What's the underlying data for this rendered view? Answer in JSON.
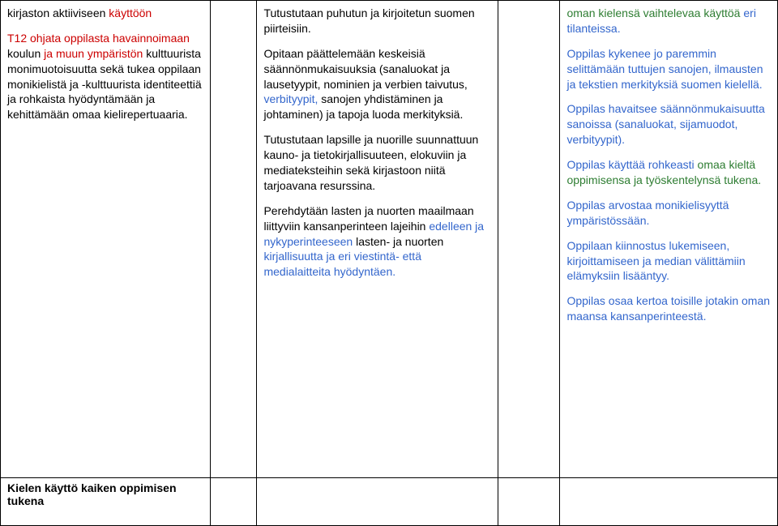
{
  "colors": {
    "red": "#cc0000",
    "blue": "#3366cc",
    "green": "#2e7d32",
    "black": "#000000",
    "border": "#000000",
    "background": "#ffffff"
  },
  "typography": {
    "font_family": "Arial",
    "font_size_pt": 11,
    "line_height": 1.35
  },
  "layout": {
    "columns": 5,
    "column_widths_pct": [
      27,
      6,
      31,
      8,
      28
    ]
  },
  "col1": {
    "p1_part1": "kirjaston aktiiviseen ",
    "p1_part2_red": "käyttöön",
    "p2_part1_red": "T12 ohjata oppilasta havainnoimaan",
    "p2_part2": " koulun ",
    "p2_part3_red": "ja muun ympäristön",
    "p2_part4": " kulttuurista monimuotoisuutta sekä tukea oppilaan monikielistä ja -kulttuurista identiteettiä ja rohkaista hyödyntämään ja kehittämään omaa kielirepertuaaria."
  },
  "col3": {
    "p1": "Tutustutaan puhutun ja kirjoitetun suomen piirteisiin.",
    "p2_part1": "Opitaan päättelemään keskeisiä säännönmukaisuuksia (sanaluokat ja lausetyypit, nominien ja verbien taivutus, ",
    "p2_part2_blue": "verbityypit,",
    "p2_part3": " sanojen yhdistäminen ja johtaminen) ja tapoja luoda merkityksiä.",
    "p3": "Tutustutaan lapsille ja nuorille suunnattuun kauno- ja tietokirjallisuuteen, elokuviin ja mediateksteihin sekä kirjastoon niitä tarjoavana resurssina.",
    "p4_part1": "Perehdytään lasten ja nuorten maailmaan liittyviin kansanperinteen lajeihin ",
    "p4_part2_blue": "edelleen ja nykyperinteeseen",
    "p4_part3": " lasten- ja nuorten ",
    "p4_part4_blue": "kirjallisuutta ja eri viestintä- että medialaitteita hyödyntäen."
  },
  "col5": {
    "p1_part1_green": "oman kielensä vaihtelevaa käyttöä",
    "p1_part2_blue": " eri tilanteissa.",
    "p2": "Oppilas kykenee jo paremmin selittämään tuttujen sanojen, ilmausten ja tekstien merkityksiä suomen kielellä.",
    "p3": "Oppilas havaitsee säännönmukaisuutta sanoissa (sanaluokat, sijamuodot, verbityypit).",
    "p4_part1_blue": "Oppilas käyttää rohkeasti ",
    "p4_part2_green": "omaa kieltä oppimisensa ja työskentelynsä tukena.",
    "p5": "Oppilas arvostaa monikielisyyttä ympäristössään.",
    "p6": "Oppilaan kiinnostus lukemiseen, kirjoittamiseen ja median välittämiin elämyksiin lisääntyy.",
    "p7": "Oppilas osaa kertoa toisille jotakin oman maansa kansanperinteestä."
  },
  "row2": {
    "heading": "Kielen käyttö kaiken oppimisen tukena"
  }
}
